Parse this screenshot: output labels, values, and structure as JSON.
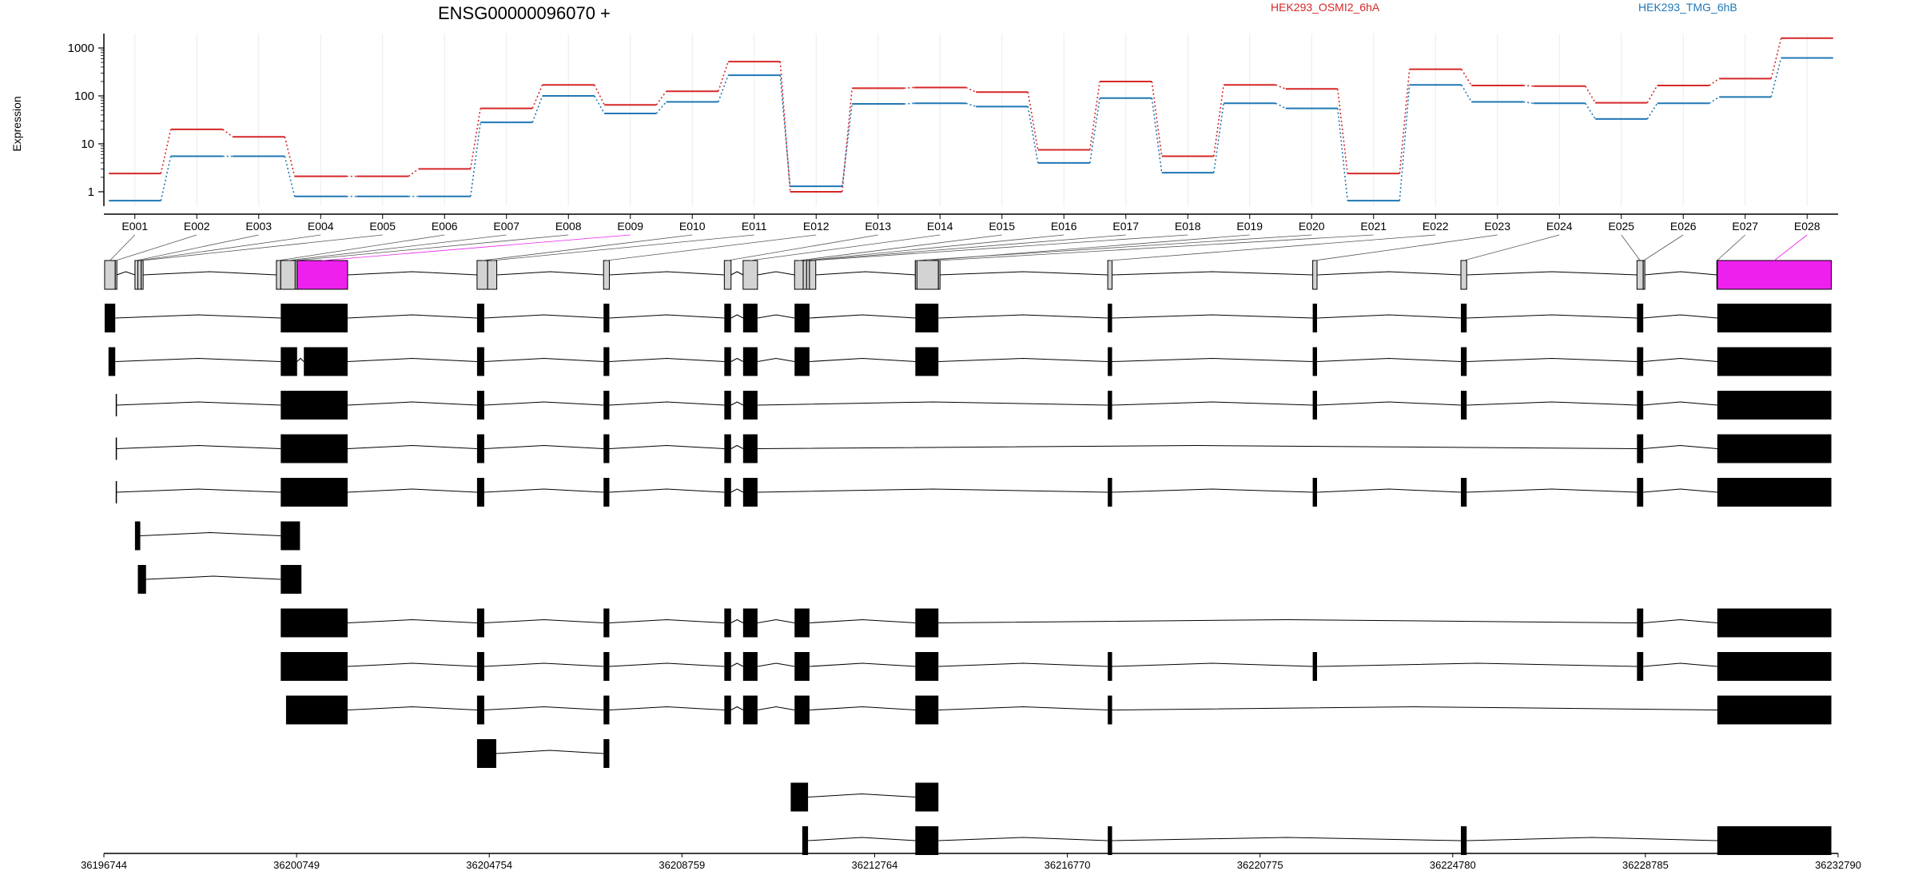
{
  "figure": {
    "title": "ENSG00000096070 +",
    "ylabel": "Expression"
  },
  "colors": {
    "red": "#d62728",
    "blue": "#1f77b4",
    "magenta": "#ee20ee",
    "exon_fill": "#d3d3d3",
    "black": "#000000",
    "grid": "#ececec"
  },
  "chart_data": {
    "type": "line",
    "yscale": "log",
    "ylim": [
      0.5,
      2000
    ],
    "ytick_labels": [
      "1",
      "10",
      "100",
      "1000"
    ],
    "grid": true,
    "legend_placement": "top-right",
    "categories": [
      "E001",
      "E002",
      "E003",
      "E004",
      "E005",
      "E006",
      "E007",
      "E008",
      "E009",
      "E010",
      "E011",
      "E012",
      "E013",
      "E014",
      "E015",
      "E016",
      "E017",
      "E018",
      "E019",
      "E020",
      "E021",
      "E022",
      "E023",
      "E024",
      "E025",
      "E026",
      "E027",
      "E028"
    ],
    "series": [
      {
        "name": "HEK293_OSMI2_6hA",
        "color": "#d62728",
        "values": [
          2.4,
          20,
          14,
          2.1,
          2.1,
          3.0,
          55,
          170,
          65,
          125,
          520,
          1.0,
          145,
          150,
          120,
          7.5,
          200,
          5.5,
          170,
          140,
          2.4,
          360,
          165,
          160,
          72,
          165,
          230,
          1600
        ]
      },
      {
        "name": "HEK293_TMG_6hB",
        "color": "#1f77b4",
        "values": [
          0.65,
          5.5,
          5.5,
          0.8,
          0.8,
          0.8,
          28,
          100,
          43,
          75,
          270,
          1.3,
          68,
          70,
          60,
          4.0,
          90,
          2.5,
          70,
          55,
          0.65,
          170,
          75,
          70,
          33,
          70,
          95,
          620
        ]
      }
    ],
    "genome_axis_ticks": [
      "36196744",
      "36200749",
      "36204754",
      "36208759",
      "36212764",
      "36216770",
      "36220775",
      "36224780",
      "36228785",
      "36232790"
    ],
    "gene_model": {
      "exons": [
        {
          "id": "E001",
          "start": 36196760,
          "end": 36196980
        },
        {
          "id": "E002",
          "start": 36196980,
          "end": 36197010
        },
        {
          "id": "E003",
          "start": 36197390,
          "end": 36197450
        },
        {
          "id": "E004",
          "start": 36197450,
          "end": 36197520
        },
        {
          "id": "E005",
          "start": 36197520,
          "end": 36197560
        },
        {
          "id": "E006",
          "start": 36200330,
          "end": 36200420
        },
        {
          "id": "E007",
          "start": 36200420,
          "end": 36200720
        },
        {
          "id": "E008",
          "start": 36200720,
          "end": 36200760
        },
        {
          "id": "E009",
          "start": 36200760,
          "end": 36201810
        },
        {
          "id": "E010",
          "start": 36204500,
          "end": 36204720
        },
        {
          "id": "E011",
          "start": 36204720,
          "end": 36204910
        },
        {
          "id": "E012",
          "start": 36207130,
          "end": 36207250
        },
        {
          "id": "E013",
          "start": 36209640,
          "end": 36209780
        },
        {
          "id": "E014",
          "start": 36210030,
          "end": 36210330
        },
        {
          "id": "E015",
          "start": 36211100,
          "end": 36211280
        },
        {
          "id": "E016",
          "start": 36211280,
          "end": 36211350
        },
        {
          "id": "E017",
          "start": 36211350,
          "end": 36211410
        },
        {
          "id": "E018",
          "start": 36211410,
          "end": 36211540
        },
        {
          "id": "E019",
          "start": 36213610,
          "end": 36214090
        },
        {
          "id": "E020",
          "start": 36213610,
          "end": 36213620
        },
        {
          "id": "E021",
          "start": 36214090,
          "end": 36214100
        },
        {
          "id": "E022",
          "start": 36217610,
          "end": 36217700
        },
        {
          "id": "E023",
          "start": 36221870,
          "end": 36221960
        },
        {
          "id": "E024",
          "start": 36224950,
          "end": 36225070
        },
        {
          "id": "E025",
          "start": 36228610,
          "end": 36228740
        },
        {
          "id": "E026",
          "start": 36228740,
          "end": 36228760
        },
        {
          "id": "E027",
          "start": 36230270,
          "end": 36230280
        },
        {
          "id": "E028",
          "start": 36230280,
          "end": 36232650
        }
      ],
      "highlighted_exons": [
        "E009",
        "E028"
      ],
      "transcripts": [
        [
          [
            36196760,
            36196980
          ],
          [
            36200420,
            36201810
          ],
          [
            36204500,
            36204650
          ],
          [
            36207130,
            36207250
          ],
          [
            36209640,
            36209780
          ],
          [
            36210030,
            36210330
          ],
          [
            36211100,
            36211410
          ],
          [
            36213610,
            36214090
          ],
          [
            36217610,
            36217700
          ],
          [
            36221870,
            36221960
          ],
          [
            36224950,
            36225070
          ],
          [
            36228610,
            36228740
          ],
          [
            36230280,
            36232650
          ]
        ],
        [
          [
            36196840,
            36196980
          ],
          [
            36200420,
            36200760
          ],
          [
            36200900,
            36201810
          ],
          [
            36204500,
            36204650
          ],
          [
            36207130,
            36207250
          ],
          [
            36209640,
            36209780
          ],
          [
            36210030,
            36210330
          ],
          [
            36211100,
            36211410
          ],
          [
            36213610,
            36214090
          ],
          [
            36217610,
            36217700
          ],
          [
            36221870,
            36221960
          ],
          [
            36224950,
            36225070
          ],
          [
            36228610,
            36228740
          ],
          [
            36230280,
            36232650
          ]
        ],
        [
          [
            36196990,
            36197000
          ],
          [
            36200420,
            36201810
          ],
          [
            36204500,
            36204650
          ],
          [
            36207130,
            36207250
          ],
          [
            36209640,
            36209780
          ],
          [
            36210030,
            36210330
          ],
          [
            36217610,
            36217700
          ],
          [
            36221870,
            36221960
          ],
          [
            36224950,
            36225070
          ],
          [
            36228610,
            36228740
          ],
          [
            36230280,
            36232650
          ]
        ],
        [
          [
            36196990,
            36197000
          ],
          [
            36200420,
            36201810
          ],
          [
            36204500,
            36204650
          ],
          [
            36207130,
            36207250
          ],
          [
            36209640,
            36209780
          ],
          [
            36210030,
            36210330
          ],
          [
            36228610,
            36228740
          ],
          [
            36230280,
            36232650
          ]
        ],
        [
          [
            36196990,
            36197000
          ],
          [
            36200420,
            36201810
          ],
          [
            36204500,
            36204650
          ],
          [
            36207130,
            36207250
          ],
          [
            36209640,
            36209780
          ],
          [
            36210030,
            36210330
          ],
          [
            36217610,
            36217700
          ],
          [
            36221870,
            36221960
          ],
          [
            36224950,
            36225070
          ],
          [
            36228610,
            36228740
          ],
          [
            36230280,
            36232650
          ]
        ],
        [
          [
            36197390,
            36197500
          ],
          [
            36200420,
            36200820
          ]
        ],
        [
          [
            36197450,
            36197620
          ],
          [
            36200420,
            36200850
          ]
        ],
        [
          [
            36200420,
            36201810
          ],
          [
            36204500,
            36204650
          ],
          [
            36207130,
            36207250
          ],
          [
            36209640,
            36209780
          ],
          [
            36210030,
            36210330
          ],
          [
            36211100,
            36211410
          ],
          [
            36213610,
            36214090
          ],
          [
            36228610,
            36228740
          ],
          [
            36230280,
            36232650
          ]
        ],
        [
          [
            36200420,
            36201810
          ],
          [
            36204500,
            36204650
          ],
          [
            36207130,
            36207250
          ],
          [
            36209640,
            36209780
          ],
          [
            36210030,
            36210330
          ],
          [
            36211100,
            36211410
          ],
          [
            36213610,
            36214090
          ],
          [
            36217610,
            36217700
          ],
          [
            36221870,
            36221960
          ],
          [
            36228610,
            36228740
          ],
          [
            36230280,
            36232650
          ]
        ],
        [
          [
            36200530,
            36201810
          ],
          [
            36204500,
            36204650
          ],
          [
            36207130,
            36207250
          ],
          [
            36209640,
            36209780
          ],
          [
            36210030,
            36210330
          ],
          [
            36211100,
            36211410
          ],
          [
            36213610,
            36214090
          ],
          [
            36217610,
            36217700
          ],
          [
            36230280,
            36232650
          ]
        ],
        [
          [
            36204500,
            36204900
          ],
          [
            36207130,
            36207250
          ]
        ],
        [
          [
            36211020,
            36211380
          ],
          [
            36213610,
            36214090
          ]
        ],
        [
          [
            36211260,
            36211380
          ],
          [
            36213610,
            36214090
          ],
          [
            36217610,
            36217700
          ],
          [
            36224950,
            36225070
          ],
          [
            36230280,
            36232650
          ]
        ]
      ]
    }
  }
}
